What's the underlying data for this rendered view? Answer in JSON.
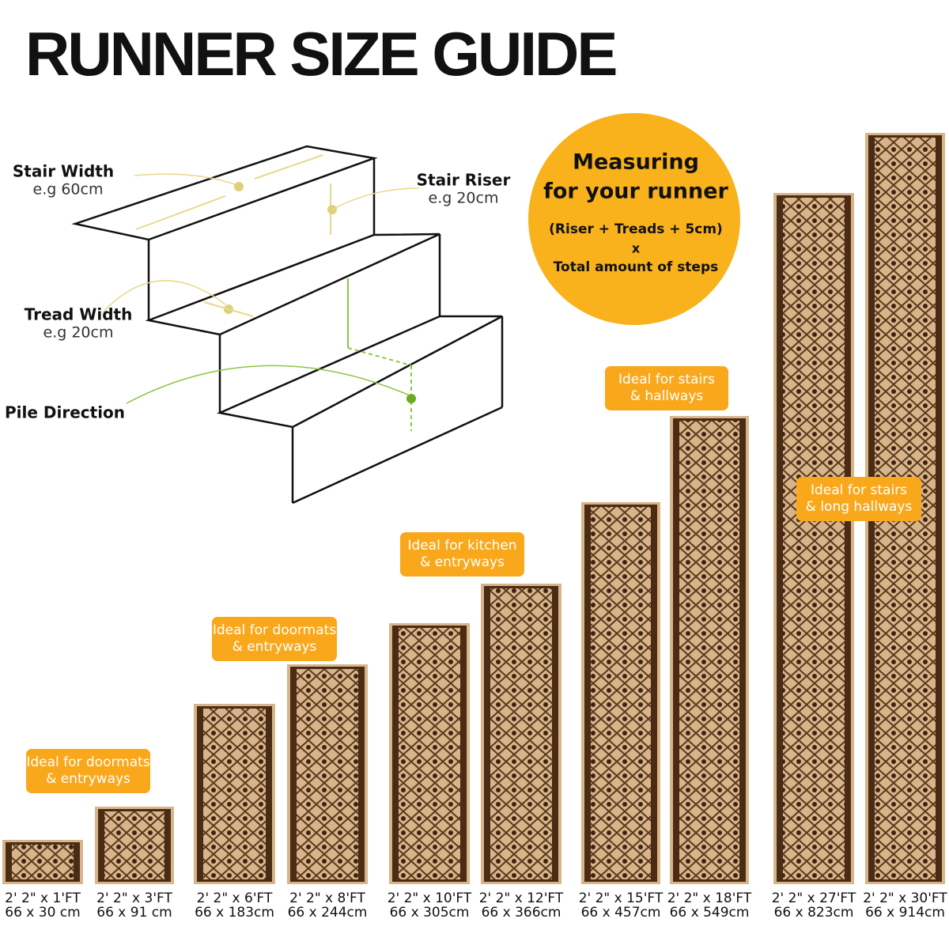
{
  "header": {
    "title": "RUNNER SIZE GUIDE"
  },
  "diagram": {
    "stair_width": {
      "label": "Stair Width",
      "example": "e.g 60cm"
    },
    "stair_riser": {
      "label": "Stair Riser",
      "example": "e.g 20cm"
    },
    "tread_width": {
      "label": "Tread Width",
      "example": "e.g 20cm"
    },
    "pile_direction": {
      "label": "Pile Direction"
    }
  },
  "measuring": {
    "title_lines": [
      "Measuring",
      "for your runner"
    ],
    "formula": "(Riser + Treads + 5cm)",
    "operator": "x",
    "multiplier": "Total amount of steps"
  },
  "badges": [
    {
      "lines": [
        "Ideal for doormats",
        "& entryways"
      ]
    },
    {
      "lines": [
        "Ideal for doormats",
        "& entryways"
      ]
    },
    {
      "lines": [
        "Ideal for kitchen",
        "& entryways"
      ]
    },
    {
      "lines": [
        "Ideal for stairs",
        "& hallways"
      ]
    },
    {
      "lines": [
        "Ideal for stairs",
        "& long hallways"
      ]
    }
  ],
  "runners": [
    {
      "imperial": "2' 2\" x 1'FT",
      "metric": "66 x 30 cm"
    },
    {
      "imperial": "2' 2\" x 3'FT",
      "metric": "66 x 91 cm"
    },
    {
      "imperial": "2' 2\" x 6'FT",
      "metric": "66 x 183cm"
    },
    {
      "imperial": "2' 2\" x 8'FT",
      "metric": "66 x 244cm"
    },
    {
      "imperial": "2' 2\" x 10'FT",
      "metric": "66 x 305cm"
    },
    {
      "imperial": "2' 2\" x 12'FT",
      "metric": "66 x 366cm"
    },
    {
      "imperial": "2' 2\" x 15'FT",
      "metric": "66 x 457cm"
    },
    {
      "imperial": "2' 2\" x 18'FT",
      "metric": "66 x 549cm"
    },
    {
      "imperial": "2' 2\" x 27'FT",
      "metric": "66 x 823cm"
    },
    {
      "imperial": "2' 2\" x 30'FT",
      "metric": "66 x 914cm"
    }
  ]
}
